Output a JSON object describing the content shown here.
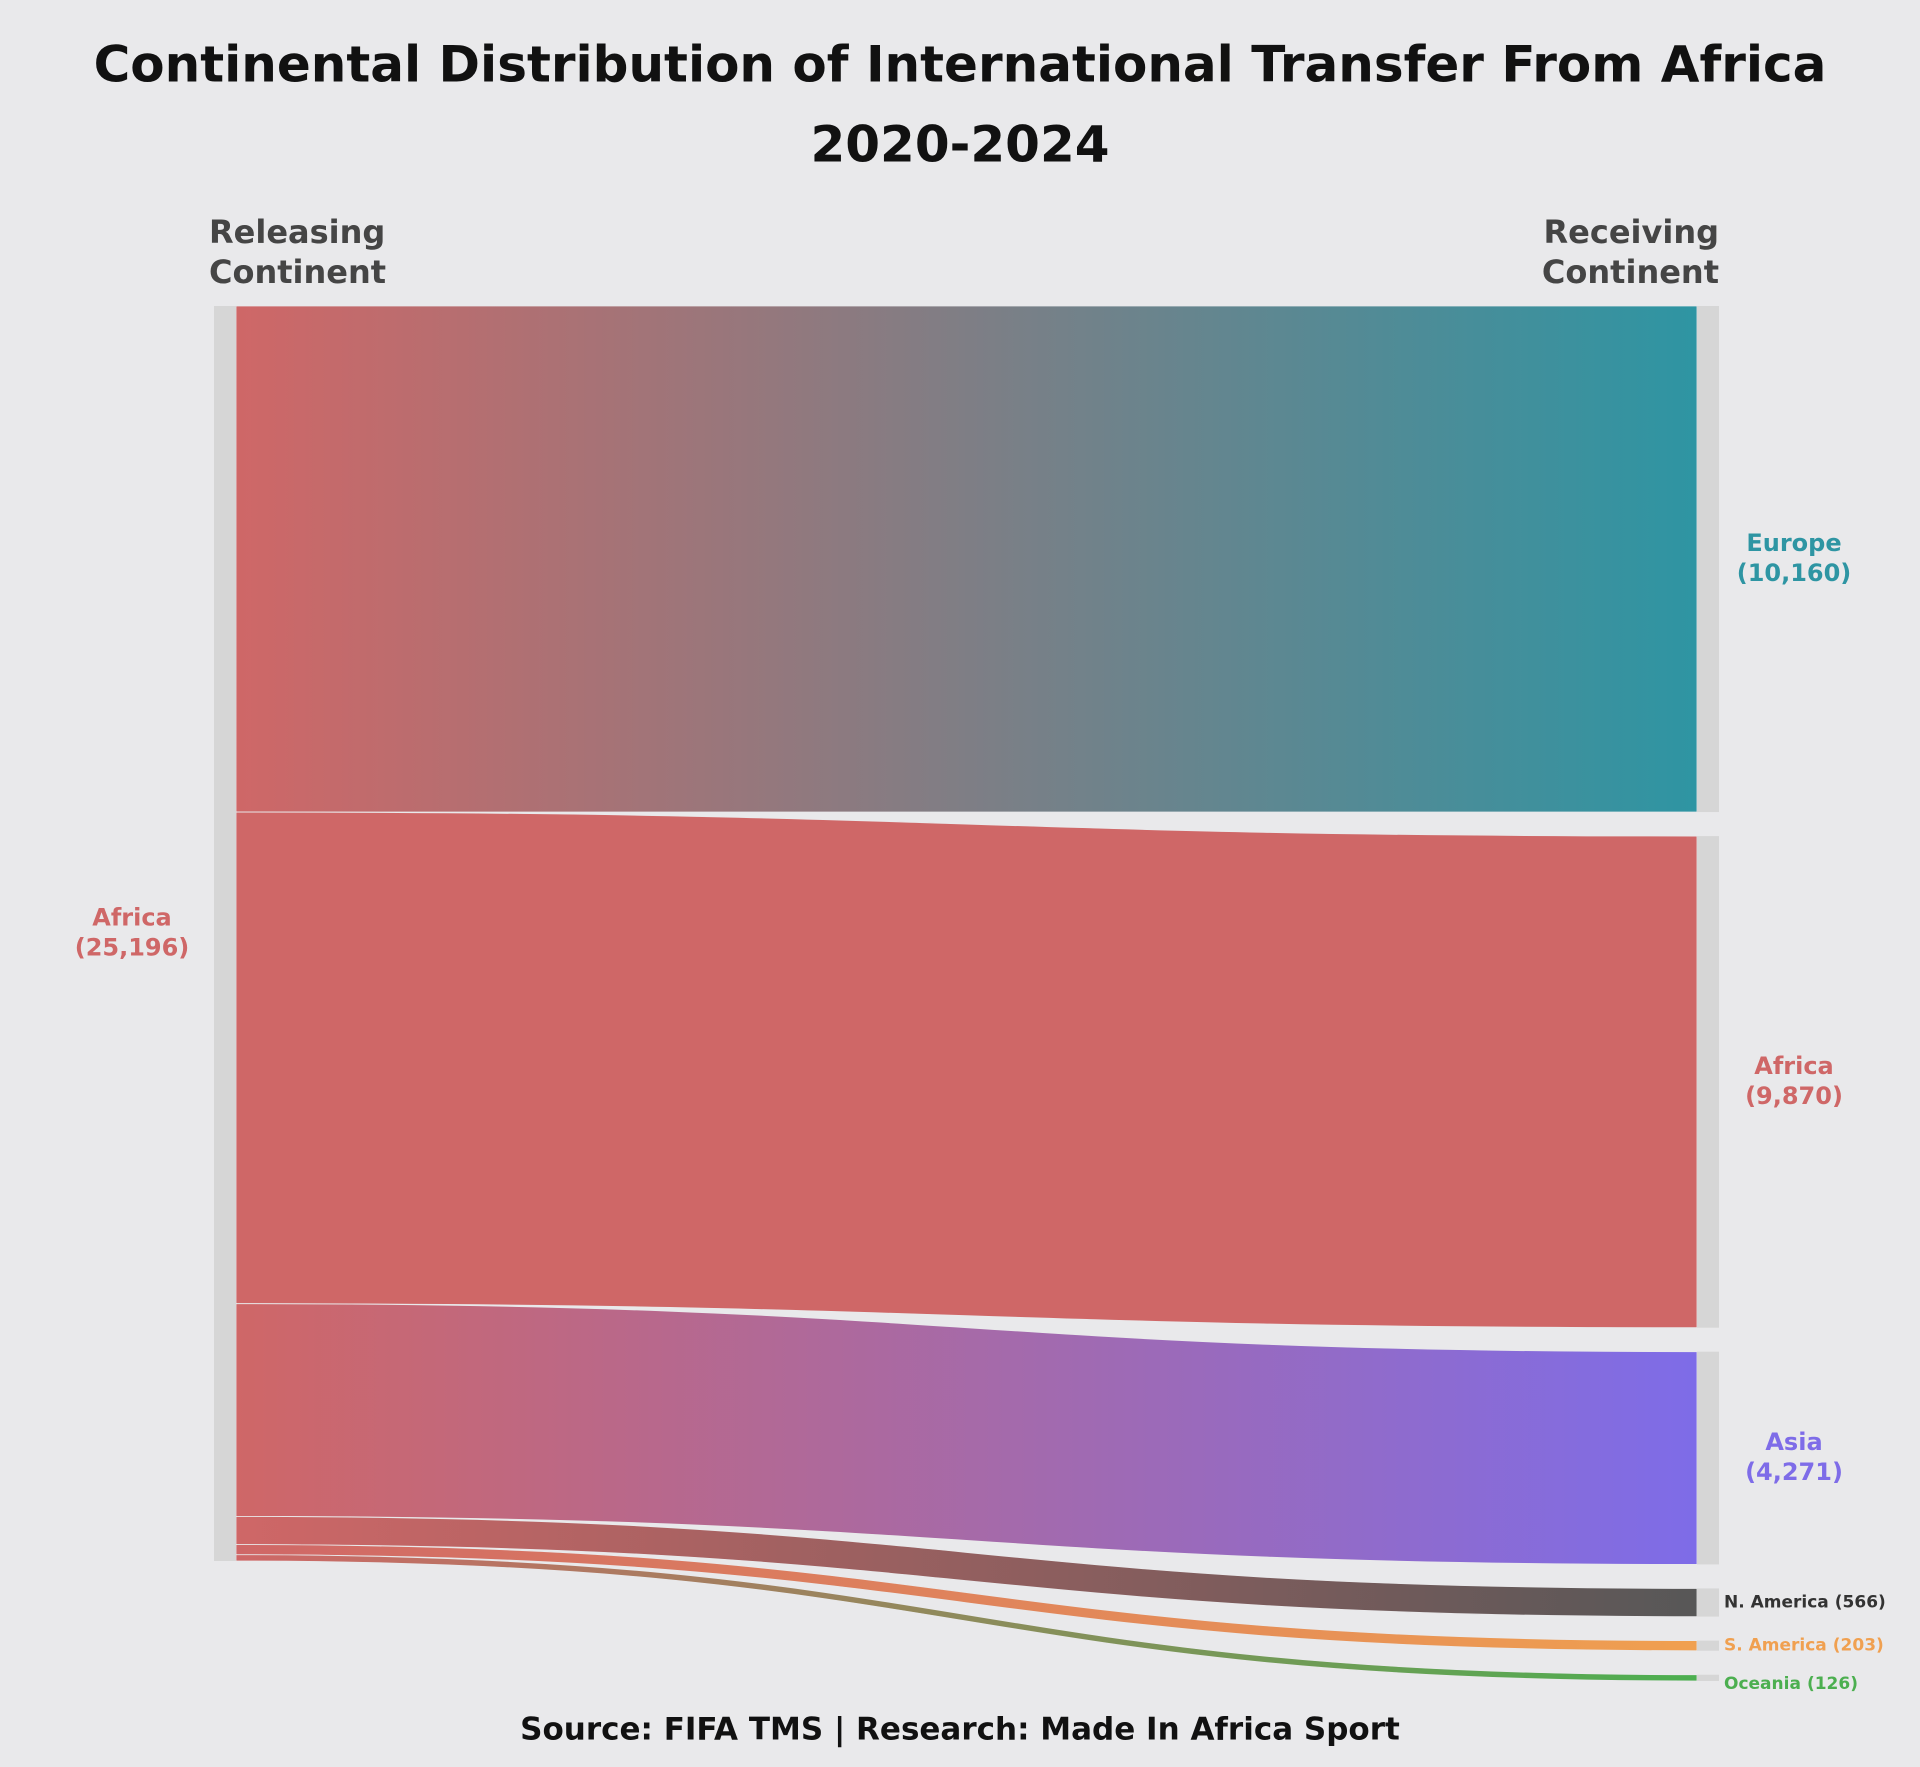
{
  "chart_data": {
    "type": "sankey",
    "title": "Continental Distribution of International Transfer From Africa",
    "subtitle": "2020-2024",
    "left_header": "Releasing Continent",
    "right_header": "Receiving Continent",
    "source_note": "Source: FIFA TMS | Research: Made In Africa Sport",
    "source_node": {
      "name": "Africa",
      "value": 25196,
      "value_label": "(25,196)",
      "color": "#cf6767"
    },
    "targets": [
      {
        "name": "Europe",
        "value": 10160,
        "value_label": "(10,160)",
        "color": "#2e95a3"
      },
      {
        "name": "Africa",
        "value": 9870,
        "value_label": "(9,870)",
        "color": "#cf6767"
      },
      {
        "name": "Asia",
        "value": 4271,
        "value_label": "(4,271)",
        "color": "#7e6ce8"
      },
      {
        "name": "N. America",
        "value": 566,
        "value_label": "(566)",
        "color": "#575757"
      },
      {
        "name": "S. America",
        "value": 203,
        "value_label": "(203)",
        "color": "#f0a050"
      },
      {
        "name": "Oceania",
        "value": 126,
        "value_label": "(126)",
        "color": "#4caf50"
      }
    ]
  }
}
